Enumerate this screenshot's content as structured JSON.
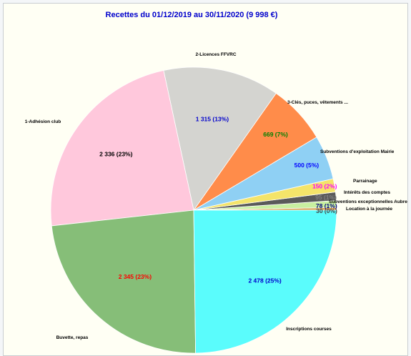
{
  "chart_data": {
    "type": "pie",
    "title": "Recettes du 01/12/2019 au 30/11/2020 (9 998 €)",
    "title_color": "#0000cc",
    "start_angle_deg": 0,
    "direction": "counterclockwise",
    "slices": [
      {
        "name": "Location à la journée",
        "value": 30,
        "value_label": "30 (0%)",
        "color": "#d4a050",
        "label_color": "#444444"
      },
      {
        "name": "Subventions exceptionnelles Aubres",
        "value": 78,
        "value_label": "78 (1%)",
        "color": "#c8f0a0",
        "label_color": "#000080"
      },
      {
        "name": "Intérêts des comptes",
        "value": 95,
        "value_label": "95 (1%)",
        "color": "#5a5a5a",
        "label_color": "#808080"
      },
      {
        "name": "Parrainage",
        "value": 150,
        "value_label": "150 (2%)",
        "color": "#f4e46a",
        "label_color": "#ff00ff"
      },
      {
        "name": "Subventions d'exploitation Mairie",
        "value": 500,
        "value_label": "500 (5%)",
        "color": "#8fd0f4",
        "label_color": "#0000ff"
      },
      {
        "name": "3-Clés, puces, vêtements ...",
        "value": 669,
        "value_label": "669 (7%)",
        "color": "#ff8c4a",
        "label_color": "#008000"
      },
      {
        "name": "2-Licences FFVRC",
        "value": 1315,
        "value_label": "1 315 (13%)",
        "color": "#d4d4d0",
        "label_color": "#0000cc"
      },
      {
        "name": "1-Adhésion club",
        "value": 2336,
        "value_label": "2 336 (23%)",
        "color": "#ffc8dc",
        "label_color": "#000000"
      },
      {
        "name": "Buvette, repas",
        "value": 2345,
        "value_label": "2 345 (23%)",
        "color": "#86be78",
        "label_color": "#ff0000"
      },
      {
        "name": "Inscriptions courses",
        "value": 2478,
        "value_label": "2 478 (25%)",
        "color": "#5afcfc",
        "label_color": "#0000cc"
      }
    ]
  }
}
